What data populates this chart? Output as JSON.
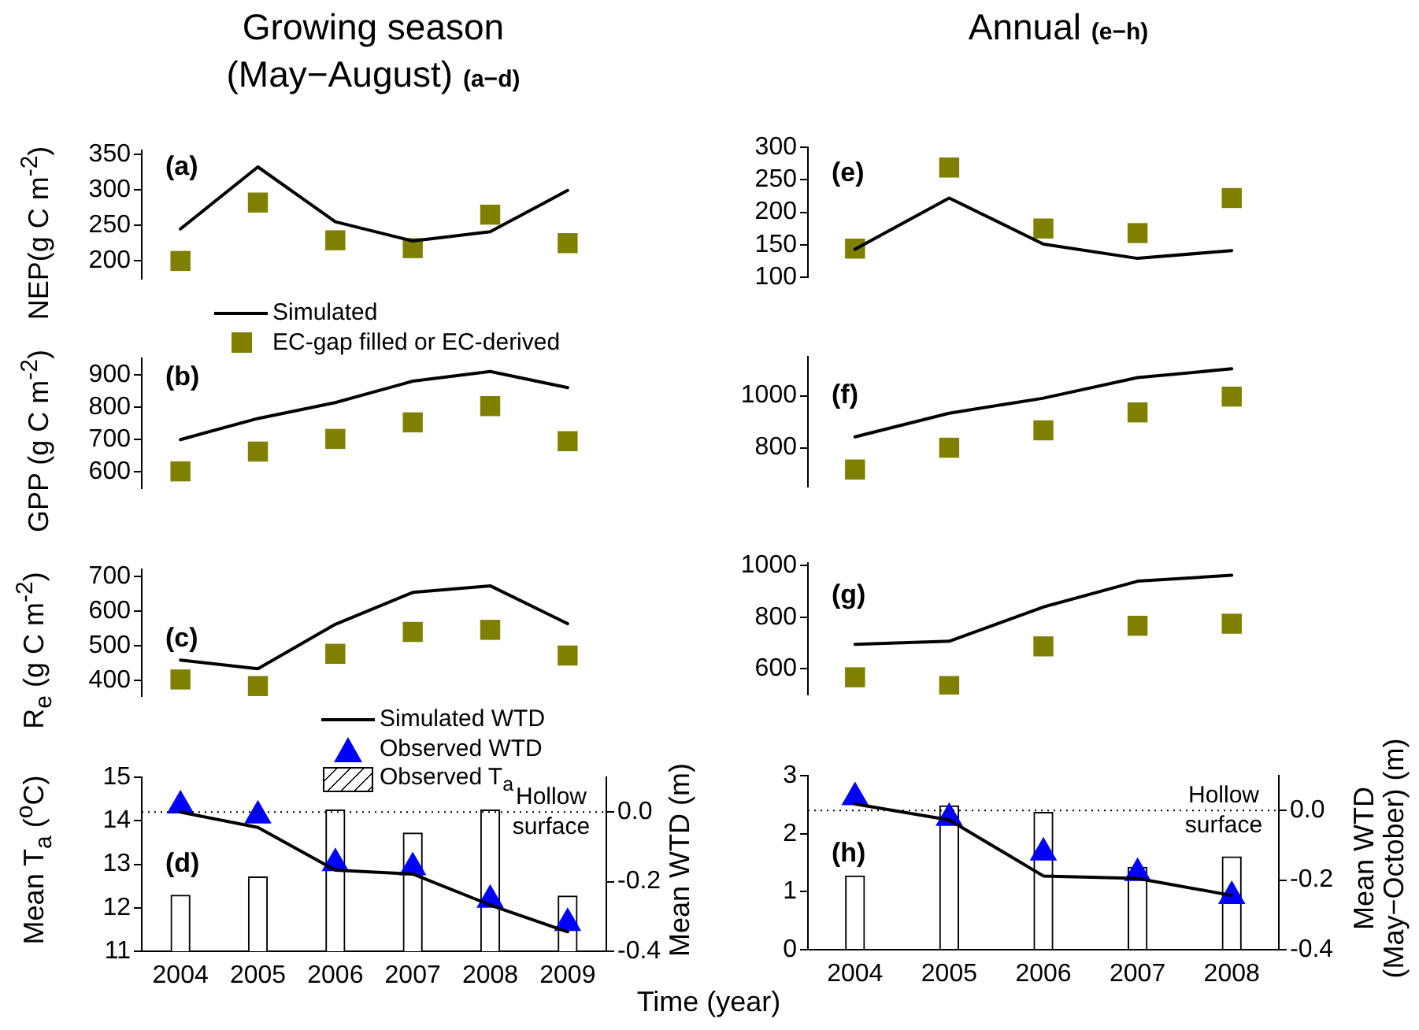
{
  "chart_data": [
    {
      "type": "line",
      "title": "Growing season (May−August)",
      "subtitle": "(a−d)",
      "ylabel": "NEP(g C m$^{-2}$)",
      "categories": [
        "2004",
        "2005",
        "2006",
        "2007",
        "2008",
        "2009"
      ],
      "tick_labels": "y",
      "ylim": [
        175,
        355
      ],
      "yticks": [
        200,
        250,
        300,
        350
      ],
      "legend": "bottom",
      "annotations": [
        "(a)"
      ],
      "series": [
        {
          "name": "Simulated",
          "color": "#000000",
          "marker": "none",
          "values": [
            245,
            332,
            255,
            228,
            241,
            299
          ]
        },
        {
          "name": "EC-gap filled or EC-derived",
          "type": "scatter",
          "color": "#808000",
          "marker": "square",
          "values": [
            200,
            282,
            229,
            218,
            265,
            225
          ]
        }
      ]
    },
    {
      "type": "line",
      "ylabel": "GPP (g C m$^{-2}$)",
      "categories": [
        "2004",
        "2005",
        "2006",
        "2007",
        "2008",
        "2009"
      ],
      "tick_labels": "y",
      "ylim": [
        550,
        950
      ],
      "yticks": [
        600,
        700,
        800,
        900
      ],
      "annotations": [
        "(b)"
      ],
      "series": [
        {
          "color": "#000000",
          "marker": "none",
          "values": [
            700,
            765,
            814,
            880,
            910,
            860
          ]
        },
        {
          "type": "scatter",
          "color": "#808000",
          "marker": "square",
          "values": [
            602,
            663,
            702,
            753,
            803,
            695
          ]
        }
      ]
    },
    {
      "type": "line",
      "ylabel": "R$_{e}$ (g C m$^{-2}$)",
      "categories": [
        "2004",
        "2005",
        "2006",
        "2007",
        "2008",
        "2009"
      ],
      "tick_labels": "y",
      "ylim": [
        355,
        720
      ],
      "yticks": [
        400,
        500,
        600,
        700
      ],
      "annotations": [
        "(c)"
      ],
      "series": [
        {
          "color": "#000000",
          "marker": "none",
          "values": [
            459,
            434,
            562,
            654,
            673,
            564
          ]
        },
        {
          "type": "scatter",
          "color": "#808000",
          "marker": "square",
          "values": [
            403,
            384,
            477,
            540,
            546,
            472
          ]
        }
      ]
    },
    {
      "type": "bar",
      "xlabel": "Time (year)",
      "ylabel": "Mean T$_{a}$ ($^{o}$C)",
      "y2label": "Mean WTD (m)",
      "categories": [
        "2004",
        "2005",
        "2006",
        "2007",
        "2008",
        "2009"
      ],
      "ylim": [
        11,
        15
      ],
      "yticks": [
        11,
        12,
        13,
        14,
        15
      ],
      "y2lim": [
        -0.4,
        0.1
      ],
      "y2ticks": [
        {
          "value": 0,
          "label": "0.0"
        },
        {
          "value": -0.2,
          "label": "-0.2"
        },
        {
          "value": -0.4,
          "label": "-0.4"
        }
      ],
      "legend": "top",
      "annotations": [
        "(d)"
      ],
      "ref_lines": [
        {
          "axis": "y2",
          "value": 0,
          "label": "Hollow surface",
          "line_style": "dotted",
          "color": "#000000"
        }
      ],
      "series": [
        {
          "name": "Simulated WTD",
          "type": "line",
          "axis": "y2",
          "color": "#000000",
          "marker": "none",
          "values": [
            0.0,
            -0.044,
            -0.167,
            -0.178,
            -0.267,
            -0.344
          ]
        },
        {
          "name": "Observed WTD",
          "type": "scatter",
          "axis": "y2",
          "color": "#0000ff",
          "marker": "triangle",
          "values": [
            0.019,
            -0.01,
            -0.147,
            -0.159,
            -0.252,
            -0.319
          ]
        },
        {
          "name": "Observed T$_{a}$",
          "color": "#ffffff",
          "values": [
            12.29,
            12.71,
            14.25,
            13.72,
            14.25,
            12.27
          ]
        }
      ]
    },
    {
      "type": "line",
      "title": "Annual",
      "subtitle": "(e−h)",
      "categories": [
        "2004",
        "2005",
        "2006",
        "2007",
        "2008"
      ],
      "tick_labels": "y",
      "ylim": [
        100,
        300
      ],
      "yticks": [
        100,
        150,
        200,
        250,
        300
      ],
      "annotations": [
        "(e)"
      ],
      "series": [
        {
          "color": "#000000",
          "marker": "none",
          "values": [
            143,
            222,
            151,
            129,
            141
          ]
        },
        {
          "type": "scatter",
          "color": "#808000",
          "marker": "square",
          "values": [
            144,
            269,
            175,
            168,
            222
          ]
        }
      ]
    },
    {
      "type": "line",
      "categories": [
        "2004",
        "2005",
        "2006",
        "2007",
        "2008"
      ],
      "tick_labels": "y",
      "ylim": [
        650,
        1150
      ],
      "yticks": [
        800,
        1000
      ],
      "annotations": [
        "(f)"
      ],
      "series": [
        {
          "color": "#000000",
          "marker": "none",
          "values": [
            842,
            933,
            991,
            1070,
            1104
          ]
        },
        {
          "type": "scatter",
          "color": "#808000",
          "marker": "square",
          "values": [
            716,
            800,
            867,
            936,
            997
          ]
        }
      ]
    },
    {
      "type": "line",
      "categories": [
        "2004",
        "2005",
        "2006",
        "2007",
        "2008"
      ],
      "tick_labels": "y",
      "ylim": [
        500,
        1010
      ],
      "yticks": [
        600,
        800,
        1000
      ],
      "annotations": [
        "(g)"
      ],
      "series": [
        {
          "color": "#000000",
          "marker": "none",
          "values": [
            695,
            707,
            840,
            940,
            963
          ]
        },
        {
          "type": "scatter",
          "color": "#808000",
          "marker": "square",
          "values": [
            567,
            533,
            687,
            767,
            775
          ]
        }
      ]
    },
    {
      "type": "bar",
      "y2label": "Mean WTD (May−October) (m)",
      "categories": [
        "2004",
        "2005",
        "2006",
        "2007",
        "2008"
      ],
      "ylim": [
        0,
        3
      ],
      "yticks": [
        0,
        1,
        2,
        3
      ],
      "y2lim": [
        -0.4,
        0.1
      ],
      "y2ticks": [
        {
          "value": 0,
          "label": "0.0"
        },
        {
          "value": -0.2,
          "label": "-0.2"
        },
        {
          "value": -0.4,
          "label": "-0.4"
        }
      ],
      "annotations": [
        "(h)"
      ],
      "ref_lines": [
        {
          "axis": "y2",
          "value": 0,
          "label": "Hollow surface",
          "line_style": "dotted",
          "color": "#000000"
        }
      ],
      "series": [
        {
          "type": "line",
          "axis": "y2",
          "color": "#000000",
          "marker": "none",
          "values": [
            0.019,
            -0.027,
            -0.188,
            -0.195,
            -0.244
          ]
        },
        {
          "type": "scatter",
          "axis": "y2",
          "color": "#0000ff",
          "marker": "triangle",
          "values": [
            0.038,
            -0.021,
            -0.121,
            -0.18,
            -0.246
          ]
        },
        {
          "color": "#ffffff",
          "values": [
            1.27,
            2.48,
            2.37,
            1.42,
            1.6
          ]
        }
      ]
    }
  ]
}
